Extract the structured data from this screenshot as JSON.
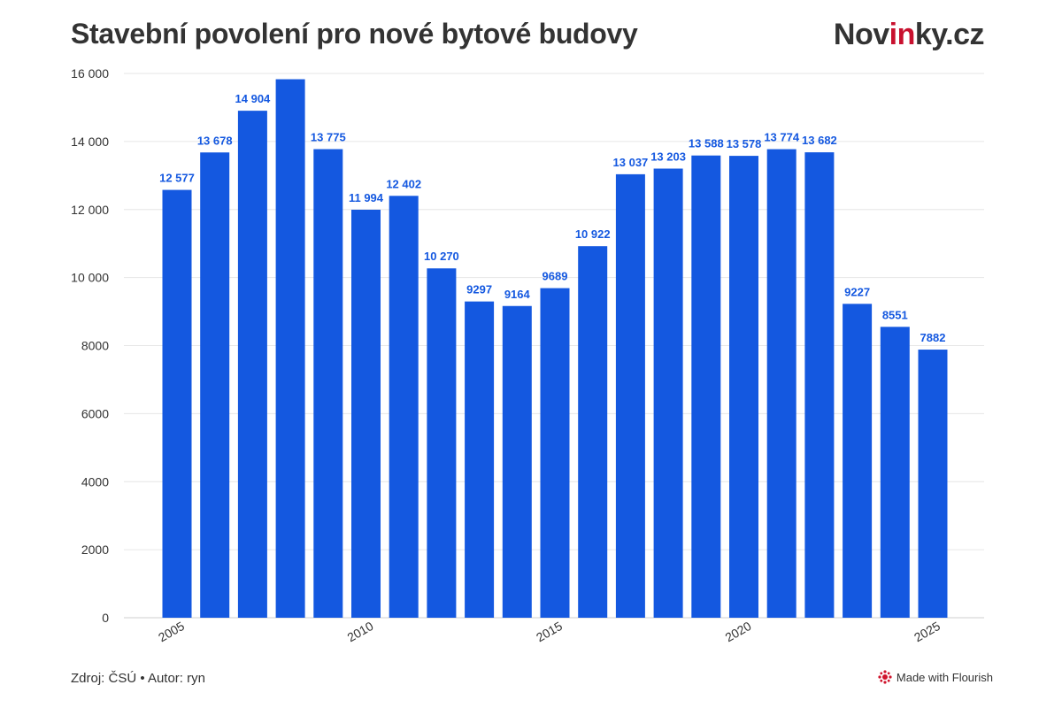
{
  "header": {
    "title": "Stavební povolení pro nové bytové budovy",
    "logo_prefix": "Nov",
    "logo_accent": "in",
    "logo_suffix": "ky.cz"
  },
  "footer": {
    "source": "Zdroj: ČSÚ • Autor: ryn",
    "flourish_label": "Made with Flourish"
  },
  "colors": {
    "bar": "#1458e0",
    "data_label": "#1458e0",
    "grid": "#e6e6e6",
    "text": "#333333",
    "logo_accent": "#c8102e"
  },
  "chart_data": {
    "type": "bar",
    "title": "Stavební povolení pro nové bytové budovy",
    "xlabel": "",
    "ylabel": "",
    "categories": [
      2005,
      2006,
      2007,
      2008,
      2009,
      2010,
      2011,
      2012,
      2013,
      2014,
      2015,
      2016,
      2017,
      2018,
      2019,
      2020,
      2021,
      2022,
      2023,
      2024,
      2025
    ],
    "values": [
      12577,
      13678,
      14904,
      15830,
      13775,
      11994,
      12402,
      10270,
      9297,
      9164,
      9689,
      10922,
      13037,
      13203,
      13588,
      13578,
      13774,
      13682,
      9227,
      8551,
      7882
    ],
    "data_labels": [
      "12 577",
      "13 678",
      "14 904",
      "",
      "13 775",
      "11 994",
      "12 402",
      "10 270",
      "9297",
      "9164",
      "9689",
      "10 922",
      "13 037",
      "13 203",
      "13 588",
      "13 578",
      "13 774",
      "13 682",
      "9227",
      "8551",
      "7882"
    ],
    "ylim": [
      0,
      16000
    ],
    "y_ticks": [
      0,
      2000,
      4000,
      6000,
      8000,
      10000,
      12000,
      14000,
      16000
    ],
    "y_tick_labels": [
      "0",
      "2000",
      "4000",
      "6000",
      "8000",
      "10 000",
      "12 000",
      "14 000",
      "16 000"
    ],
    "x_ticks": [
      2005,
      2010,
      2015,
      2020,
      2025
    ],
    "x_tick_labels": [
      "2005",
      "2010",
      "2015",
      "2020",
      "2025"
    ],
    "grid": true,
    "legend": "none"
  }
}
